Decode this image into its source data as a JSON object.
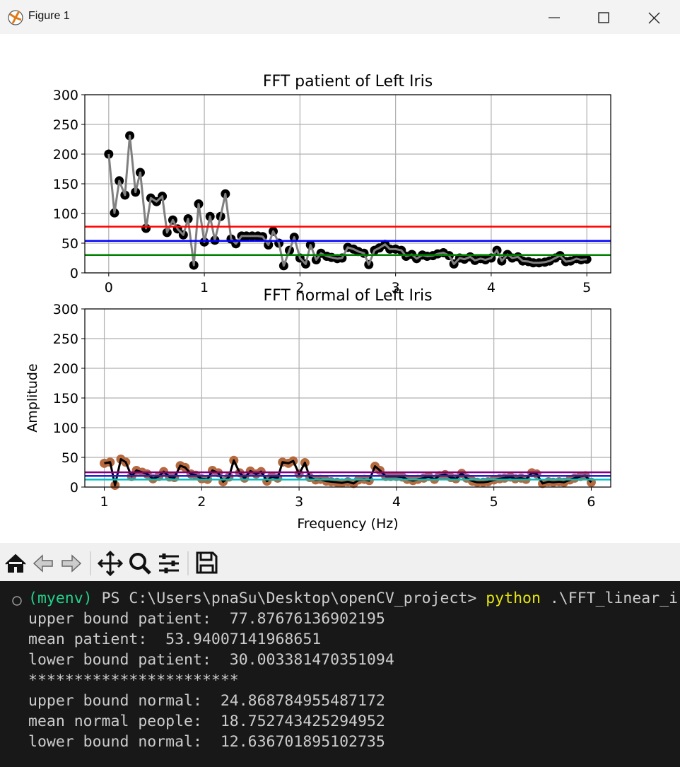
{
  "window": {
    "title": "Figure 1"
  },
  "chart_data": [
    {
      "type": "line",
      "title": "FFT patient of Left Iris",
      "x": [
        0,
        0.06,
        0.11,
        0.17,
        0.22,
        0.28,
        0.33,
        0.39,
        0.44,
        0.5,
        0.56,
        0.61,
        0.67,
        0.72,
        0.78,
        0.83,
        0.89,
        0.94,
        1,
        1.06,
        1.11,
        1.17,
        1.22,
        1.28,
        1.33,
        1.39,
        1.44,
        1.5,
        1.56,
        1.61,
        1.67,
        1.72,
        1.78,
        1.83,
        1.89,
        1.94,
        2,
        2.06,
        2.11,
        2.17,
        2.22,
        2.28,
        2.33,
        2.39,
        2.44,
        2.5,
        2.56,
        2.61,
        2.67,
        2.72,
        2.78,
        2.83,
        2.89,
        2.94,
        3,
        3.06,
        3.11,
        3.17,
        3.22,
        3.28,
        3.33,
        3.39,
        3.44,
        3.5,
        3.56,
        3.61,
        3.67,
        3.72,
        3.78,
        3.83,
        3.89,
        3.94,
        4,
        4.06,
        4.11,
        4.17,
        4.22,
        4.28,
        4.33,
        4.39,
        4.44,
        4.5,
        4.56,
        4.61,
        4.67,
        4.72,
        4.78,
        4.83,
        4.89,
        4.94,
        5
      ],
      "series": [
        {
          "color": "#808080",
          "marker_color": "#000000",
          "values": [
            200,
            101,
            155,
            131,
            231,
            136,
            169,
            75,
            126,
            120,
            129,
            68,
            89,
            74,
            64,
            91,
            13,
            116,
            52,
            95,
            55,
            95,
            133,
            57,
            49,
            62,
            62,
            62,
            62,
            61,
            47,
            70,
            50,
            12,
            38,
            60,
            25,
            15,
            47,
            22,
            33,
            28,
            26,
            24,
            25,
            43,
            40,
            36,
            33,
            14,
            38,
            42,
            48,
            40,
            40,
            38,
            28,
            31,
            24,
            30,
            28,
            29,
            32,
            34,
            29,
            15,
            25,
            23,
            27,
            21,
            24,
            22,
            25,
            38,
            20,
            31,
            25,
            27,
            20,
            19,
            17,
            17,
            18,
            20,
            25,
            29,
            19,
            20,
            24,
            22,
            23
          ]
        }
      ],
      "hlines": [
        {
          "value": 77.87676136902195,
          "color": "#ff0000"
        },
        {
          "value": 53.94007141968651,
          "color": "#0000ff"
        },
        {
          "value": 30.003381470351094,
          "color": "#008000"
        }
      ],
      "xlim": [
        -0.25,
        5.25
      ],
      "xticks": [
        0,
        1,
        2,
        3,
        4,
        5
      ],
      "ylim": [
        0,
        300
      ],
      "yticks": [
        0,
        50,
        100,
        150,
        200,
        250,
        300
      ],
      "grid": true
    },
    {
      "type": "line",
      "title": "FFT normal of Left Iris",
      "x_label": "Frequency (Hz)",
      "y_label": "Amplitude",
      "x": [
        1,
        1.06,
        1.11,
        1.17,
        1.22,
        1.28,
        1.33,
        1.39,
        1.44,
        1.5,
        1.56,
        1.61,
        1.67,
        1.72,
        1.78,
        1.83,
        1.89,
        1.94,
        2,
        2.06,
        2.11,
        2.17,
        2.22,
        2.28,
        2.33,
        2.39,
        2.44,
        2.5,
        2.56,
        2.61,
        2.67,
        2.72,
        2.78,
        2.83,
        2.89,
        2.94,
        3,
        3.06,
        3.11,
        3.17,
        3.22,
        3.28,
        3.33,
        3.39,
        3.44,
        3.5,
        3.56,
        3.61,
        3.67,
        3.72,
        3.78,
        3.83,
        3.89,
        3.94,
        4,
        4.06,
        4.11,
        4.17,
        4.22,
        4.28,
        4.33,
        4.39,
        4.44,
        4.5,
        4.56,
        4.61,
        4.67,
        4.72,
        4.78,
        4.83,
        4.89,
        4.94,
        5,
        5.06,
        5.11,
        5.17,
        5.22,
        5.28,
        5.33,
        5.39,
        5.44,
        5.5,
        5.56,
        5.61,
        5.67,
        5.72,
        5.78,
        5.83,
        5.89,
        5.94,
        6
      ],
      "series": [
        {
          "color": "#000000",
          "marker_color": "#b5693f",
          "values": [
            40,
            42,
            3,
            47,
            42,
            18,
            28,
            25,
            22,
            14,
            18,
            26,
            17,
            16,
            36,
            33,
            22,
            20,
            14,
            13,
            28,
            24,
            9,
            17,
            45,
            24,
            15,
            27,
            22,
            26,
            10,
            18,
            15,
            42,
            40,
            44,
            22,
            41,
            16,
            12,
            13,
            10,
            9,
            8,
            7,
            9,
            6,
            12,
            13,
            11,
            35,
            28,
            18,
            18,
            18,
            17,
            13,
            11,
            13,
            15,
            18,
            13,
            19,
            21,
            16,
            14,
            23,
            15,
            10,
            8,
            8,
            9,
            12,
            14,
            15,
            17,
            14,
            15,
            13,
            24,
            22,
            6,
            9,
            8,
            9,
            8,
            12,
            15,
            18,
            19,
            8
          ]
        }
      ],
      "hlines": [
        {
          "value": 24.868784955487172,
          "color": "#800080"
        },
        {
          "value": 18.752743425294952,
          "color": "#2323c8"
        },
        {
          "value": 12.636701895102735,
          "color": "#00bfbf"
        }
      ],
      "xlim": [
        0.8,
        6.2
      ],
      "xticks": [
        1,
        2,
        3,
        4,
        5,
        6
      ],
      "ylim": [
        0,
        300
      ],
      "yticks": [
        0,
        50,
        100,
        150,
        200,
        250,
        300
      ],
      "grid": true
    }
  ],
  "terminal": {
    "env": "(myenv)",
    "path": "PS C:\\Users\\pnaSu\\Desktop\\openCV_project>",
    "command": "python",
    "args": ".\\FFT_linear_i",
    "lines": [
      "upper bound patient:  77.87676136902195",
      "mean patient:  53.94007141968651",
      "lower bound patient:  30.003381470351094",
      "***********************",
      "upper bound normal:  24.868784955487172",
      "mean normal people:  18.752743425294952",
      "lower bound normal:  12.636701895102735"
    ]
  }
}
